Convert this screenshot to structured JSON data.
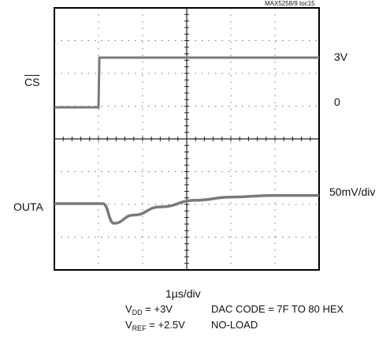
{
  "chart_data": {
    "type": "line",
    "title": "",
    "figure_id": "MAX5258/9 toc15",
    "xlabel": "1µs/div",
    "grid": true,
    "divisions": {
      "x": 6,
      "y": 8
    },
    "channels": [
      {
        "name": "CS",
        "scale": "3V",
        "levels": [
          "3V",
          "0"
        ],
        "x": [
          0,
          1.0,
          1.02,
          6
        ],
        "y": [
          0,
          0,
          3,
          3
        ]
      },
      {
        "name": "OUTA",
        "scale": "50mV/div",
        "x": [
          0,
          1.1,
          1.35,
          1.8,
          2.4,
          3.2,
          4.0,
          5.0,
          6
        ],
        "y": [
          0,
          0,
          -0.6,
          -0.35,
          -0.1,
          0.1,
          0.2,
          0.25,
          0.25
        ]
      }
    ]
  },
  "labels": {
    "figure_id": "MAX5258/9 toc15",
    "cs_left": "CS",
    "outa_left": "OUTA",
    "right_3v": "3V",
    "right_0": "0",
    "right_scale": "50mV/div",
    "time_scale": "1µs/div",
    "vdd_v": "V",
    "vdd_sub": "DD",
    "vdd_val": " = +3V",
    "vref_v": "V",
    "vref_sub": "REF",
    "vref_val": " = +2.5V",
    "dac_code": "DAC CODE = 7F TO 80 HEX",
    "no_load": "NO-LOAD"
  }
}
